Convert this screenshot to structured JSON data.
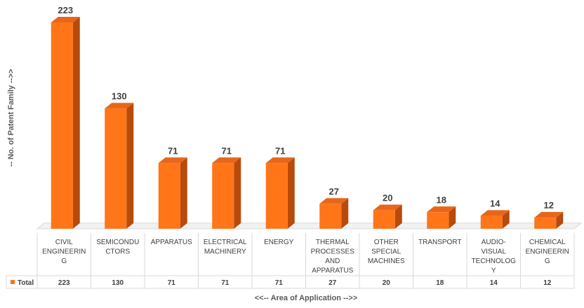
{
  "chart_data": {
    "type": "bar",
    "style": "3d-column",
    "title": "",
    "xlabel": "<<-- Area of Application -->>",
    "ylabel": "-- No. of Patent Family -->>",
    "ylim": [
      0,
      223
    ],
    "categories": [
      [
        "CIVIL",
        "ENGINEERIN",
        "G"
      ],
      [
        "SEMICONDU",
        "CTORS"
      ],
      [
        "APPARATUS"
      ],
      [
        "ELECTRICAL",
        "MACHINERY"
      ],
      [
        "ENERGY"
      ],
      [
        "THERMAL",
        "PROCESSES",
        "AND",
        "APPARATUS"
      ],
      [
        "OTHER",
        "SPECIAL",
        "MACHINES"
      ],
      [
        "TRANSPORT"
      ],
      [
        "AUDIO-",
        "VISUAL",
        "TECHNOLOG",
        "Y"
      ],
      [
        "CHEMICAL",
        "ENGINEERIN",
        "G"
      ]
    ],
    "series": [
      {
        "name": "Total",
        "values": [
          223,
          130,
          71,
          71,
          71,
          27,
          20,
          18,
          14,
          12
        ]
      }
    ],
    "data_labels": true,
    "data_table": true,
    "grid": false,
    "colors": {
      "front": "#ff7518",
      "side": "#b84a0c",
      "top": "#e8661a",
      "grid": "#d9d9d9"
    }
  }
}
